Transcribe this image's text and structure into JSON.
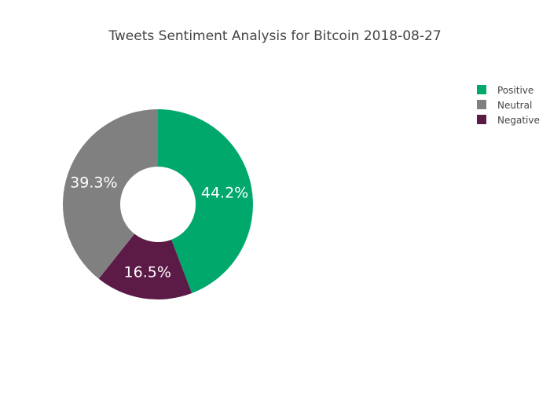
{
  "chart_data": {
    "type": "pie",
    "hole": true,
    "title": "Tweets Sentiment Analysis for Bitcoin 2018-08-27",
    "labels": [
      "Positive",
      "Neutral",
      "Negative"
    ],
    "values": [
      44.2,
      39.3,
      16.5
    ],
    "value_labels": [
      "44.2%",
      "39.3%",
      "16.5%"
    ],
    "slice_order": [
      "Positive",
      "Negative",
      "Neutral"
    ],
    "direction": "clockwise",
    "colors": {
      "Positive": "#00a86b",
      "Neutral": "#808080",
      "Negative": "#5c1a47"
    },
    "legend": {
      "position": "top-right",
      "items": [
        "Positive",
        "Neutral",
        "Negative"
      ]
    }
  }
}
